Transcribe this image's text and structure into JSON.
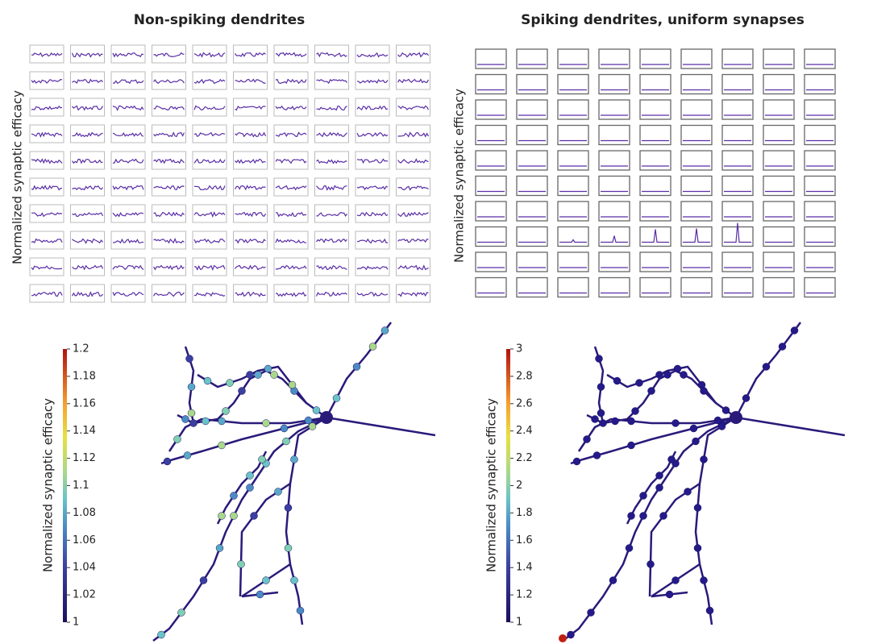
{
  "panels": [
    {
      "title": "Non-spiking dendrites",
      "y_label": "Normalized synaptic efficacy"
    },
    {
      "title": "Spiking dendrites, uniform synapses",
      "y_label": "Normalized synaptic efficacy"
    }
  ],
  "colorbars": [
    {
      "label": "Normalized synaptic efficacy",
      "lim": [
        1,
        1.2
      ],
      "ticks": [
        1,
        1.02,
        1.04,
        1.06,
        1.08,
        1.1,
        1.12,
        1.14,
        1.16,
        1.18,
        1.2
      ]
    },
    {
      "label": "Normalized synaptic efficacy",
      "lim": [
        1,
        3
      ],
      "ticks": [
        1,
        1.2,
        1.4,
        1.6,
        1.8,
        2,
        2.2,
        2.4,
        2.6,
        2.8,
        3
      ]
    }
  ]
}
